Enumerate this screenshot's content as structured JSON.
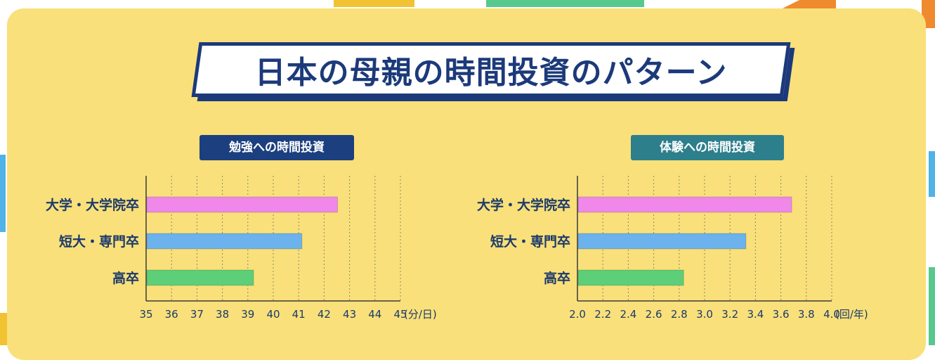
{
  "title": "日本の母親の時間投資のパターン",
  "colors": {
    "pink": "#ef88e8",
    "blue": "#6cb2ec",
    "green": "#5ccf78",
    "navy": "#1c3a7a",
    "panel": "#f9e07a"
  },
  "chart_data": [
    {
      "type": "bar",
      "orientation": "horizontal",
      "title": "勉強への時間投資",
      "categories": [
        "大学・大学院卒",
        "短大・専門卒",
        "高卒"
      ],
      "values": [
        42.5,
        41.1,
        39.2
      ],
      "xlim": [
        35,
        45
      ],
      "xticks": [
        "35",
        "36",
        "37",
        "38",
        "39",
        "40",
        "41",
        "42",
        "43",
        "44",
        "45"
      ],
      "xunit": "(分/日)",
      "grid": true
    },
    {
      "type": "bar",
      "orientation": "horizontal",
      "title": "体験への時間投資",
      "categories": [
        "大学・大学院卒",
        "短大・専門卒",
        "高卒"
      ],
      "values": [
        3.68,
        3.32,
        2.83
      ],
      "xlim": [
        2.0,
        4.0
      ],
      "xticks": [
        "2.0",
        "2.2",
        "2.4",
        "2.6",
        "2.8",
        "3.0",
        "3.2",
        "3.4",
        "3.6",
        "3.8",
        "4.0"
      ],
      "xunit": "(回/年)",
      "grid": true
    }
  ]
}
